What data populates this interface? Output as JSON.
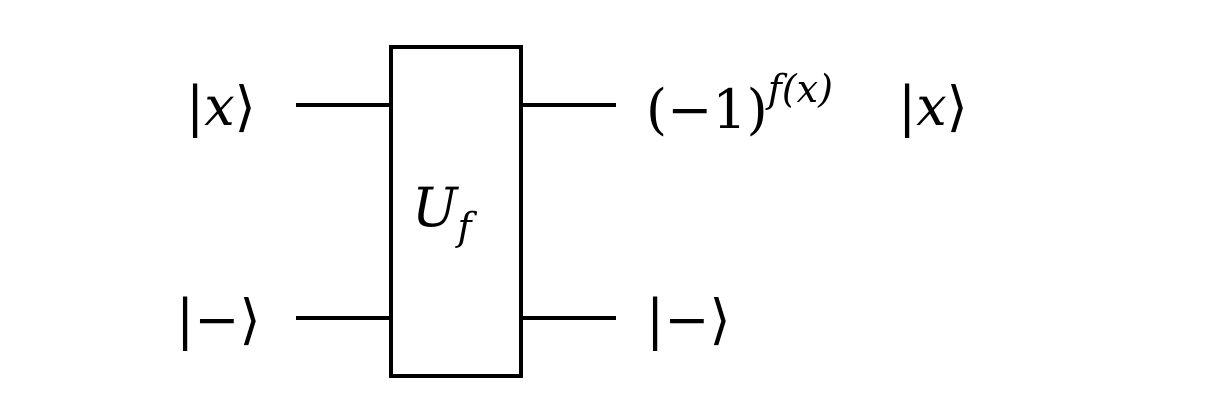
{
  "circuit": {
    "gate": {
      "main": "U",
      "sub": "f"
    },
    "inputs": {
      "top": {
        "bar": "|",
        "var": "x",
        "close": "⟩"
      },
      "bottom": {
        "bar": "|",
        "var": "−",
        "close": "⟩"
      }
    },
    "outputs": {
      "top": {
        "phase_base": "(−1)",
        "phase_exp": "f(x)",
        "bar": "|",
        "var": "x",
        "close": "⟩"
      },
      "bottom": {
        "bar": "|",
        "var": "−",
        "close": "⟩"
      }
    }
  }
}
